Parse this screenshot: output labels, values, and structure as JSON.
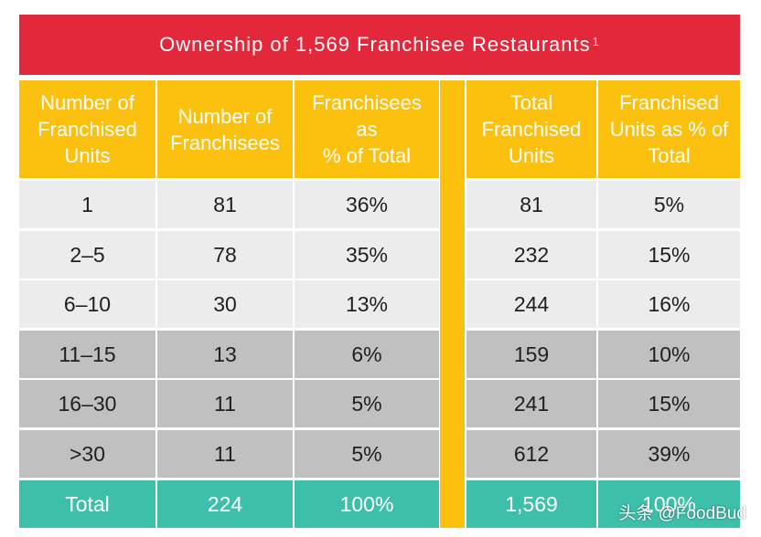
{
  "title": "Ownership of 1,569 Franchisee Restaurants",
  "title_footnote": "1",
  "chart_data": {
    "type": "table",
    "title": "Ownership of 1,569 Franchisee Restaurants",
    "columns": [
      "Number of Franchised Units",
      "Number of Franchisees",
      "Franchisees as % of Total",
      "Total Franchised Units",
      "Franchised Units as % of Total"
    ],
    "rows": [
      [
        "1",
        "81",
        "36%",
        "81",
        "5%"
      ],
      [
        "2–5",
        "78",
        "35%",
        "232",
        "15%"
      ],
      [
        "6–10",
        "30",
        "13%",
        "244",
        "16%"
      ],
      [
        "11–15",
        "13",
        "6%",
        "159",
        "10%"
      ],
      [
        "16–30",
        "11",
        "5%",
        "241",
        "15%"
      ],
      [
        ">30",
        "11",
        "5%",
        "612",
        "39%"
      ]
    ],
    "total_row": [
      "Total",
      "224",
      "100%",
      "1,569",
      "100%"
    ]
  },
  "colors": {
    "title_bar": "#e2283a",
    "header": "#fcc00f",
    "divider": "#fcc00f",
    "row_light": "#ececec",
    "row_dark": "#c0c0c0",
    "total_row": "#3dbfa9"
  },
  "watermark": "头条 @FoodBud"
}
